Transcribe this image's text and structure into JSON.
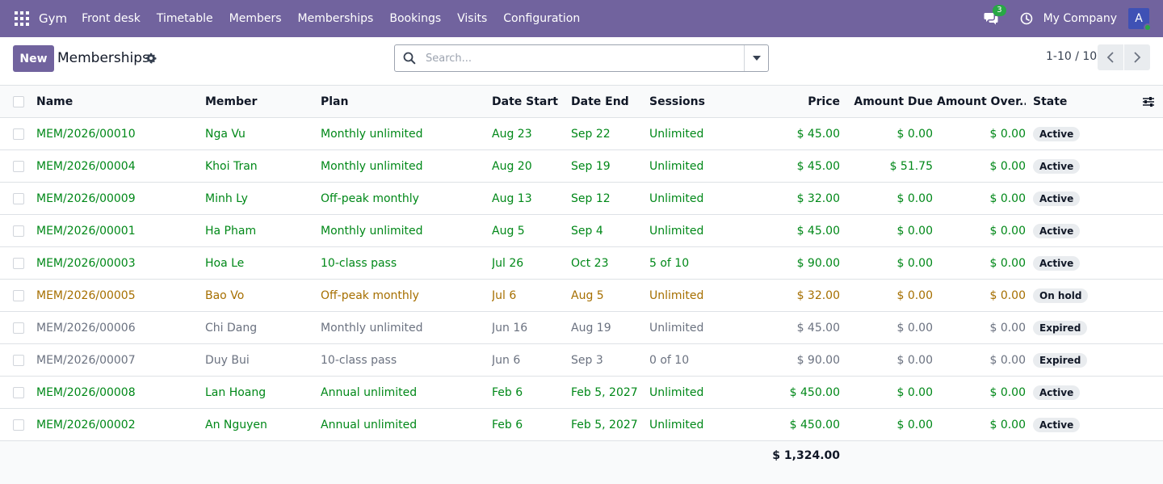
{
  "navbar": {
    "brand": "Gym",
    "menu": [
      "Front desk",
      "Timetable",
      "Members",
      "Memberships",
      "Bookings",
      "Visits",
      "Configuration"
    ],
    "chat_count": "3",
    "company": "My Company",
    "avatar_letter": "A",
    "background": "#71639e"
  },
  "control": {
    "new_label": "New",
    "title": "Memberships",
    "search_placeholder": "Search...",
    "pager": "1-10 / 10"
  },
  "table": {
    "headers": {
      "name": "Name",
      "member": "Member",
      "plan": "Plan",
      "date_start": "Date Start",
      "date_end": "Date End",
      "sessions": "Sessions",
      "price": "Price",
      "amount_due": "Amount Due",
      "amount_over": "Amount Over...",
      "state": "State"
    },
    "rows": [
      {
        "name": "MEM/2026/00010",
        "member": "Nga Vu",
        "plan": "Monthly unlimited",
        "date_start": "Aug 23",
        "date_end": "Sep 22",
        "sessions": "Unlimited",
        "price": "$ 45.00",
        "amount_due": "$ 0.00",
        "amount_over": "$ 0.00",
        "state": "Active",
        "tone": "green"
      },
      {
        "name": "MEM/2026/00004",
        "member": "Khoi Tran",
        "plan": "Monthly unlimited",
        "date_start": "Aug 20",
        "date_end": "Sep 19",
        "sessions": "Unlimited",
        "price": "$ 45.00",
        "amount_due": "$ 51.75",
        "amount_over": "$ 0.00",
        "state": "Active",
        "tone": "green"
      },
      {
        "name": "MEM/2026/00009",
        "member": "Minh Ly",
        "plan": "Off-peak monthly",
        "date_start": "Aug 13",
        "date_end": "Sep 12",
        "sessions": "Unlimited",
        "price": "$ 32.00",
        "amount_due": "$ 0.00",
        "amount_over": "$ 0.00",
        "state": "Active",
        "tone": "green"
      },
      {
        "name": "MEM/2026/00001",
        "member": "Ha Pham",
        "plan": "Monthly unlimited",
        "date_start": "Aug 5",
        "date_end": "Sep 4",
        "sessions": "Unlimited",
        "price": "$ 45.00",
        "amount_due": "$ 0.00",
        "amount_over": "$ 0.00",
        "state": "Active",
        "tone": "green"
      },
      {
        "name": "MEM/2026/00003",
        "member": "Hoa Le",
        "plan": "10-class pass",
        "date_start": "Jul 26",
        "date_end": "Oct 23",
        "sessions": "5 of 10",
        "price": "$ 90.00",
        "amount_due": "$ 0.00",
        "amount_over": "$ 0.00",
        "state": "Active",
        "tone": "green"
      },
      {
        "name": "MEM/2026/00005",
        "member": "Bao Vo",
        "plan": "Off-peak monthly",
        "date_start": "Jul 6",
        "date_end": "Aug 5",
        "sessions": "Unlimited",
        "price": "$ 32.00",
        "amount_due": "$ 0.00",
        "amount_over": "$ 0.00",
        "state": "On hold",
        "tone": "orange"
      },
      {
        "name": "MEM/2026/00006",
        "member": "Chi Dang",
        "plan": "Monthly unlimited",
        "date_start": "Jun 16",
        "date_end": "Aug 19",
        "sessions": "Unlimited",
        "price": "$ 45.00",
        "amount_due": "$ 0.00",
        "amount_over": "$ 0.00",
        "state": "Expired",
        "tone": "muted"
      },
      {
        "name": "MEM/2026/00007",
        "member": "Duy Bui",
        "plan": "10-class pass",
        "date_start": "Jun 6",
        "date_end": "Sep 3",
        "sessions": "0 of 10",
        "price": "$ 90.00",
        "amount_due": "$ 0.00",
        "amount_over": "$ 0.00",
        "state": "Expired",
        "tone": "muted"
      },
      {
        "name": "MEM/2026/00008",
        "member": "Lan Hoang",
        "plan": "Annual unlimited",
        "date_start": "Feb 6",
        "date_end": "Feb 5, 2027",
        "sessions": "Unlimited",
        "price": "$ 450.00",
        "amount_due": "$ 0.00",
        "amount_over": "$ 0.00",
        "state": "Active",
        "tone": "green"
      },
      {
        "name": "MEM/2026/00002",
        "member": "An Nguyen",
        "plan": "Annual unlimited",
        "date_start": "Feb 6",
        "date_end": "Feb 5, 2027",
        "sessions": "Unlimited",
        "price": "$ 450.00",
        "amount_due": "$ 0.00",
        "amount_over": "$ 0.00",
        "state": "Active",
        "tone": "green"
      }
    ],
    "total_price": "$ 1,324.00"
  }
}
